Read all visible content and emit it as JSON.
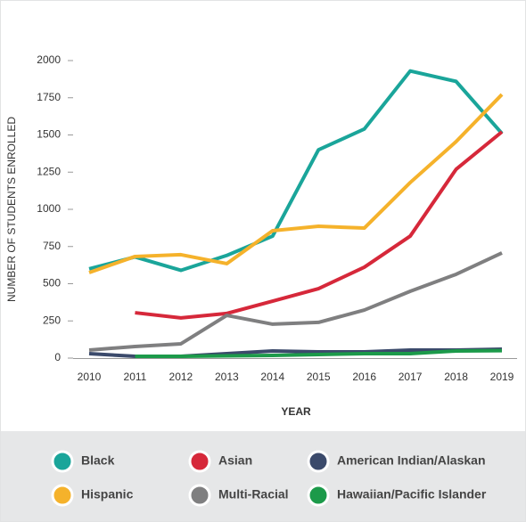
{
  "chart_data": {
    "type": "line",
    "y_label": "NUMBER OF STUDENTS ENROLLED",
    "x_label": "YEAR",
    "x": [
      2010,
      2011,
      2012,
      2013,
      2014,
      2015,
      2016,
      2017,
      2018,
      2019
    ],
    "xlim": [
      2010,
      2019
    ],
    "ylim": [
      0,
      2000
    ],
    "yticks": [
      0,
      250,
      500,
      750,
      1000,
      1250,
      1500,
      1750,
      2000
    ],
    "series": [
      {
        "name": "Black",
        "color": "#1aa59a",
        "values": [
          600,
          680,
          590,
          690,
          820,
          1400,
          1540,
          1930,
          1860,
          1510
        ]
      },
      {
        "name": "Asian",
        "color": "#d6283a",
        "values": [
          null,
          305,
          270,
          300,
          383,
          467,
          611,
          820,
          1269,
          1521
        ]
      },
      {
        "name": "American Indian/Alaskan",
        "color": "#3b4a6b",
        "values": [
          30,
          12,
          12,
          30,
          48,
          42,
          42,
          54,
          54,
          60
        ]
      },
      {
        "name": "Hispanic",
        "color": "#f5b22b",
        "values": [
          575,
          683,
          695,
          635,
          856,
          886,
          874,
          1180,
          1455,
          1772
        ]
      },
      {
        "name": "Multi-Racial",
        "color": "#7f7f80",
        "values": [
          54,
          78,
          96,
          287,
          228,
          240,
          323,
          449,
          563,
          707
        ]
      },
      {
        "name": "Hawaiian/Pacific Islander",
        "color": "#1c9a4a",
        "values": [
          null,
          12,
          12,
          15,
          18,
          24,
          30,
          30,
          48,
          50
        ]
      }
    ]
  }
}
